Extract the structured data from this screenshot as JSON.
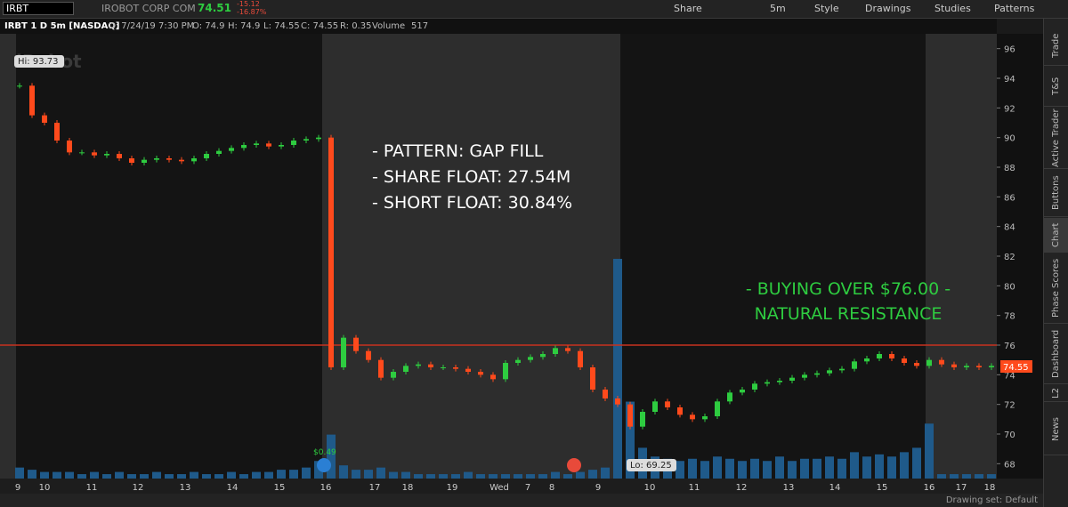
{
  "toolbar": {
    "symbol": "IRBT",
    "company": "IROBOT CORP COM",
    "last": "74.51",
    "change": "-15.12",
    "change_pct": "-16.87%",
    "buttons": [
      "Share",
      "5m",
      "Style",
      "Drawings",
      "Studies",
      "Patterns"
    ]
  },
  "header": {
    "title": "IRBT 1 D 5m [NASDAQ]",
    "date": "D: 7/24/19 7:30 PM",
    "open": "O: 74.9",
    "high": "H: 74.9",
    "low": "L: 74.55",
    "close": "C: 74.55",
    "range": "R: 0.35",
    "volume_label": "Volume",
    "volume": "517"
  },
  "side_tabs": [
    "Trade",
    "T&S",
    "Active Trader",
    "Buttons",
    "Chart",
    "Phase Scores",
    "Dashboard",
    "L2",
    "News"
  ],
  "footer": {
    "drawing_set": "Drawing set: Default"
  },
  "chart": {
    "type": "candlestick",
    "watermark": "iRobot",
    "ylim": [
      67,
      97
    ],
    "yticks": [
      68,
      70,
      72,
      74,
      76,
      78,
      80,
      82,
      84,
      86,
      88,
      90,
      92,
      94,
      96
    ],
    "x_labels": [
      "9",
      "10",
      "11",
      "12",
      "13",
      "14",
      "15",
      "16",
      "17",
      "18",
      "19",
      "Wed",
      "7",
      "8",
      "9",
      "10",
      "11",
      "12",
      "13",
      "14",
      "15",
      "16",
      "17",
      "18"
    ],
    "resistance": 76,
    "last_price_label": "74.55",
    "hi_label": "Hi: 93.73",
    "lo_label": "Lo: 69.25",
    "event_label": "$0.49",
    "notes": [
      "- PATTERN: GAP FILL",
      "- SHARE FLOAT: 27.54M",
      "- SHORT FLOAT: 30.84%"
    ],
    "resistance_notes": [
      "- BUYING OVER $76.00 -",
      "NATURAL RESISTANCE"
    ],
    "closes": [
      93.5,
      91.5,
      91.0,
      89.8,
      89.0,
      89.0,
      88.8,
      88.9,
      88.6,
      88.3,
      88.5,
      88.6,
      88.5,
      88.4,
      88.6,
      88.9,
      89.1,
      89.3,
      89.5,
      89.6,
      89.4,
      89.5,
      89.8,
      89.9,
      90.0,
      74.5,
      76.5,
      75.6,
      75.0,
      73.8,
      74.2,
      74.6,
      74.7,
      74.5,
      74.5,
      74.4,
      74.2,
      74.0,
      73.7,
      74.8,
      75.0,
      75.2,
      75.4,
      75.8,
      75.6,
      74.5,
      73.0,
      72.4,
      72.0,
      70.5,
      71.5,
      72.2,
      71.8,
      71.3,
      71.0,
      71.2,
      72.2,
      72.8,
      73.0,
      73.4,
      73.5,
      73.6,
      73.8,
      74.0,
      74.1,
      74.3,
      74.4,
      74.9,
      75.1,
      75.4,
      75.1,
      74.8,
      74.6,
      75.0,
      74.7,
      74.5,
      74.6,
      74.5,
      74.6
    ],
    "volumes": [
      5,
      4,
      3,
      3,
      3,
      2,
      3,
      2,
      3,
      2,
      2,
      3,
      2,
      2,
      3,
      2,
      2,
      3,
      2,
      3,
      3,
      4,
      4,
      5,
      8,
      20,
      6,
      4,
      4,
      5,
      3,
      3,
      2,
      2,
      2,
      2,
      3,
      2,
      2,
      2,
      2,
      2,
      2,
      3,
      2,
      3,
      4,
      5,
      100,
      35,
      14,
      10,
      9,
      8,
      9,
      8,
      10,
      9,
      8,
      9,
      8,
      10,
      8,
      9,
      9,
      10,
      9,
      12,
      10,
      11,
      10,
      12,
      14,
      25,
      2,
      2,
      2,
      2,
      2
    ]
  }
}
